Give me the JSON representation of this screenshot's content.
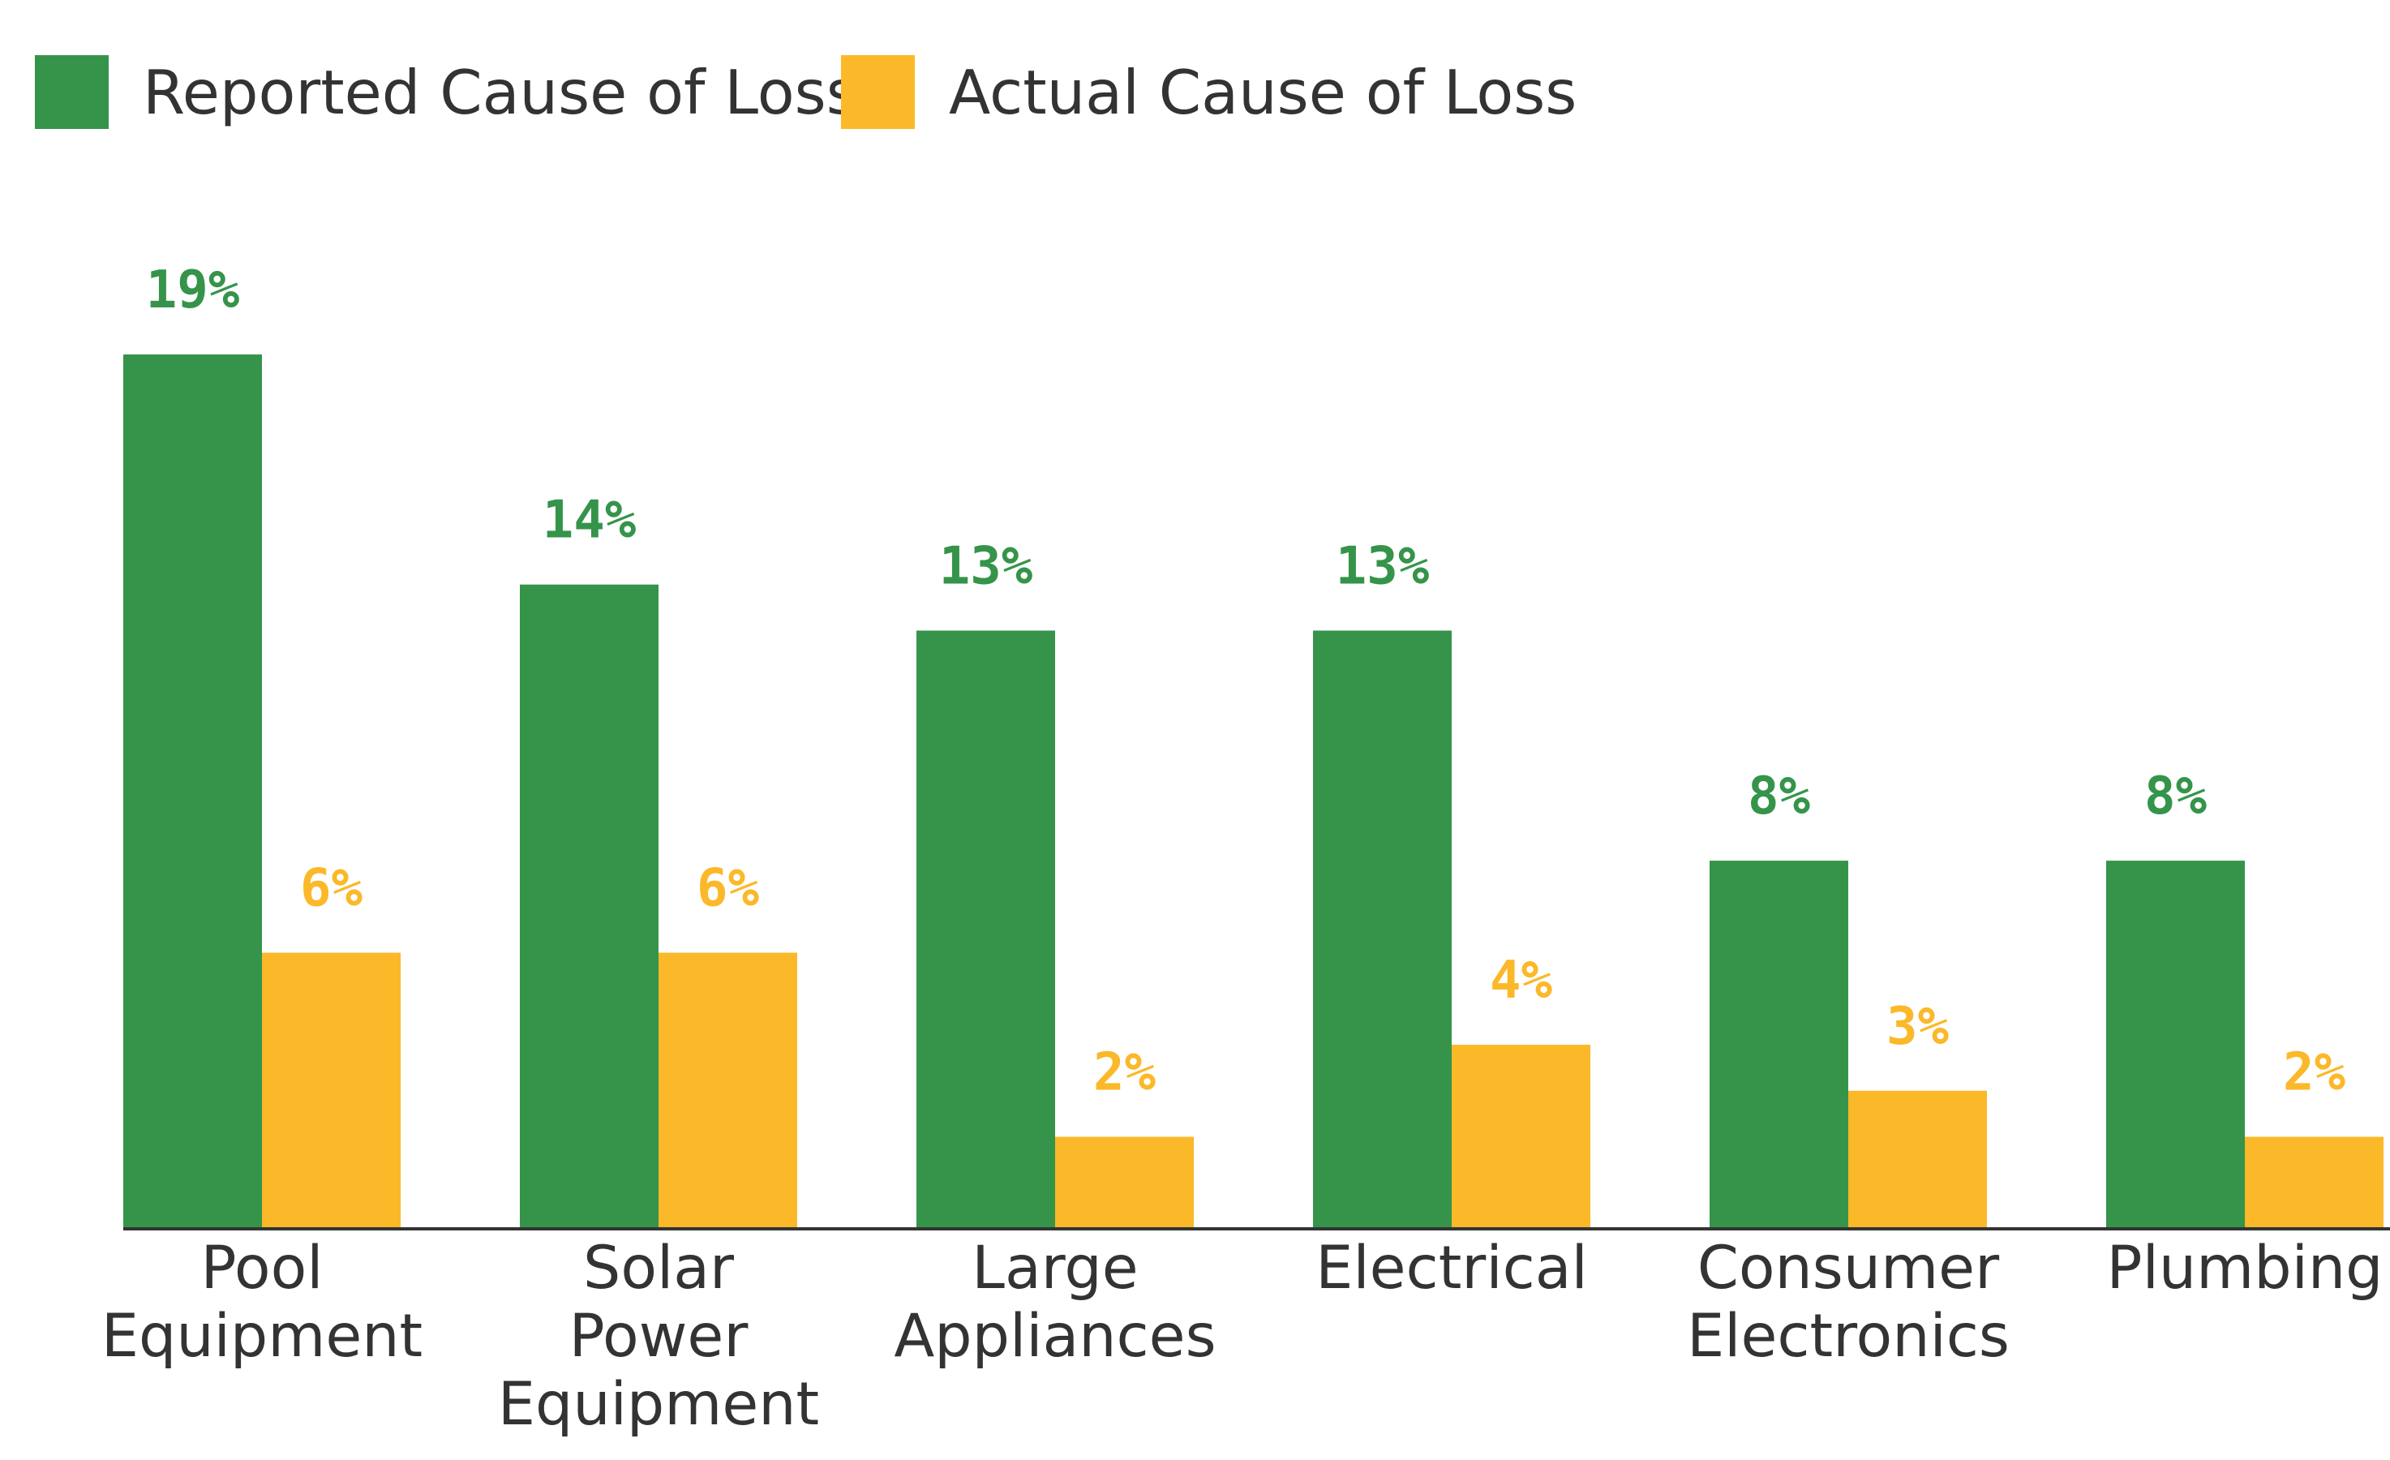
{
  "chart_data": {
    "type": "bar",
    "title": "",
    "xlabel": "",
    "ylabel": "",
    "ylim": [
      0,
      19
    ],
    "grid": false,
    "legend": "top-left",
    "categories": [
      [
        "Pool",
        "Equipment"
      ],
      [
        "Solar",
        "Power",
        "Equipment"
      ],
      [
        "Large",
        "Appliances"
      ],
      [
        "Electrical"
      ],
      [
        "Consumer",
        "Electronics"
      ],
      [
        "Plumbing"
      ]
    ],
    "series": [
      {
        "name": "Reported Cause of Loss",
        "color": "#35944A",
        "values": [
          19,
          14,
          13,
          13,
          8,
          8
        ],
        "labels": [
          "19%",
          "14%",
          "13%",
          "13%",
          "8%",
          "8%"
        ]
      },
      {
        "name": "Actual Cause of Loss",
        "color": "#FBB829",
        "values": [
          6,
          6,
          2,
          4,
          3,
          2
        ],
        "labels": [
          "6%",
          "6%",
          "2%",
          "4%",
          "3%",
          "2%"
        ]
      }
    ]
  }
}
